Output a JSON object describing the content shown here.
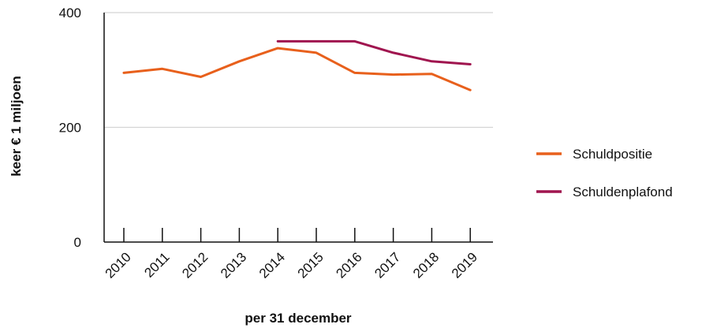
{
  "chart_data": {
    "type": "line",
    "title": "",
    "xlabel": "per 31 december",
    "ylabel": "keer € 1 miljoen",
    "categories": [
      "2010",
      "2011",
      "2012",
      "2013",
      "2014",
      "2015",
      "2016",
      "2017",
      "2018",
      "2019"
    ],
    "ylim": [
      0,
      400
    ],
    "yticks": [
      "0",
      "200",
      "400"
    ],
    "grid": true,
    "legend_position": "right",
    "series": [
      {
        "name": "Schuldpositie",
        "color": "#E8601C",
        "values": [
          295,
          302,
          288,
          315,
          338,
          330,
          295,
          292,
          293,
          265
        ]
      },
      {
        "name": "Schuldenplafond",
        "color": "#A0154F",
        "values": [
          null,
          null,
          null,
          null,
          350,
          350,
          350,
          330,
          315,
          310
        ]
      }
    ]
  }
}
